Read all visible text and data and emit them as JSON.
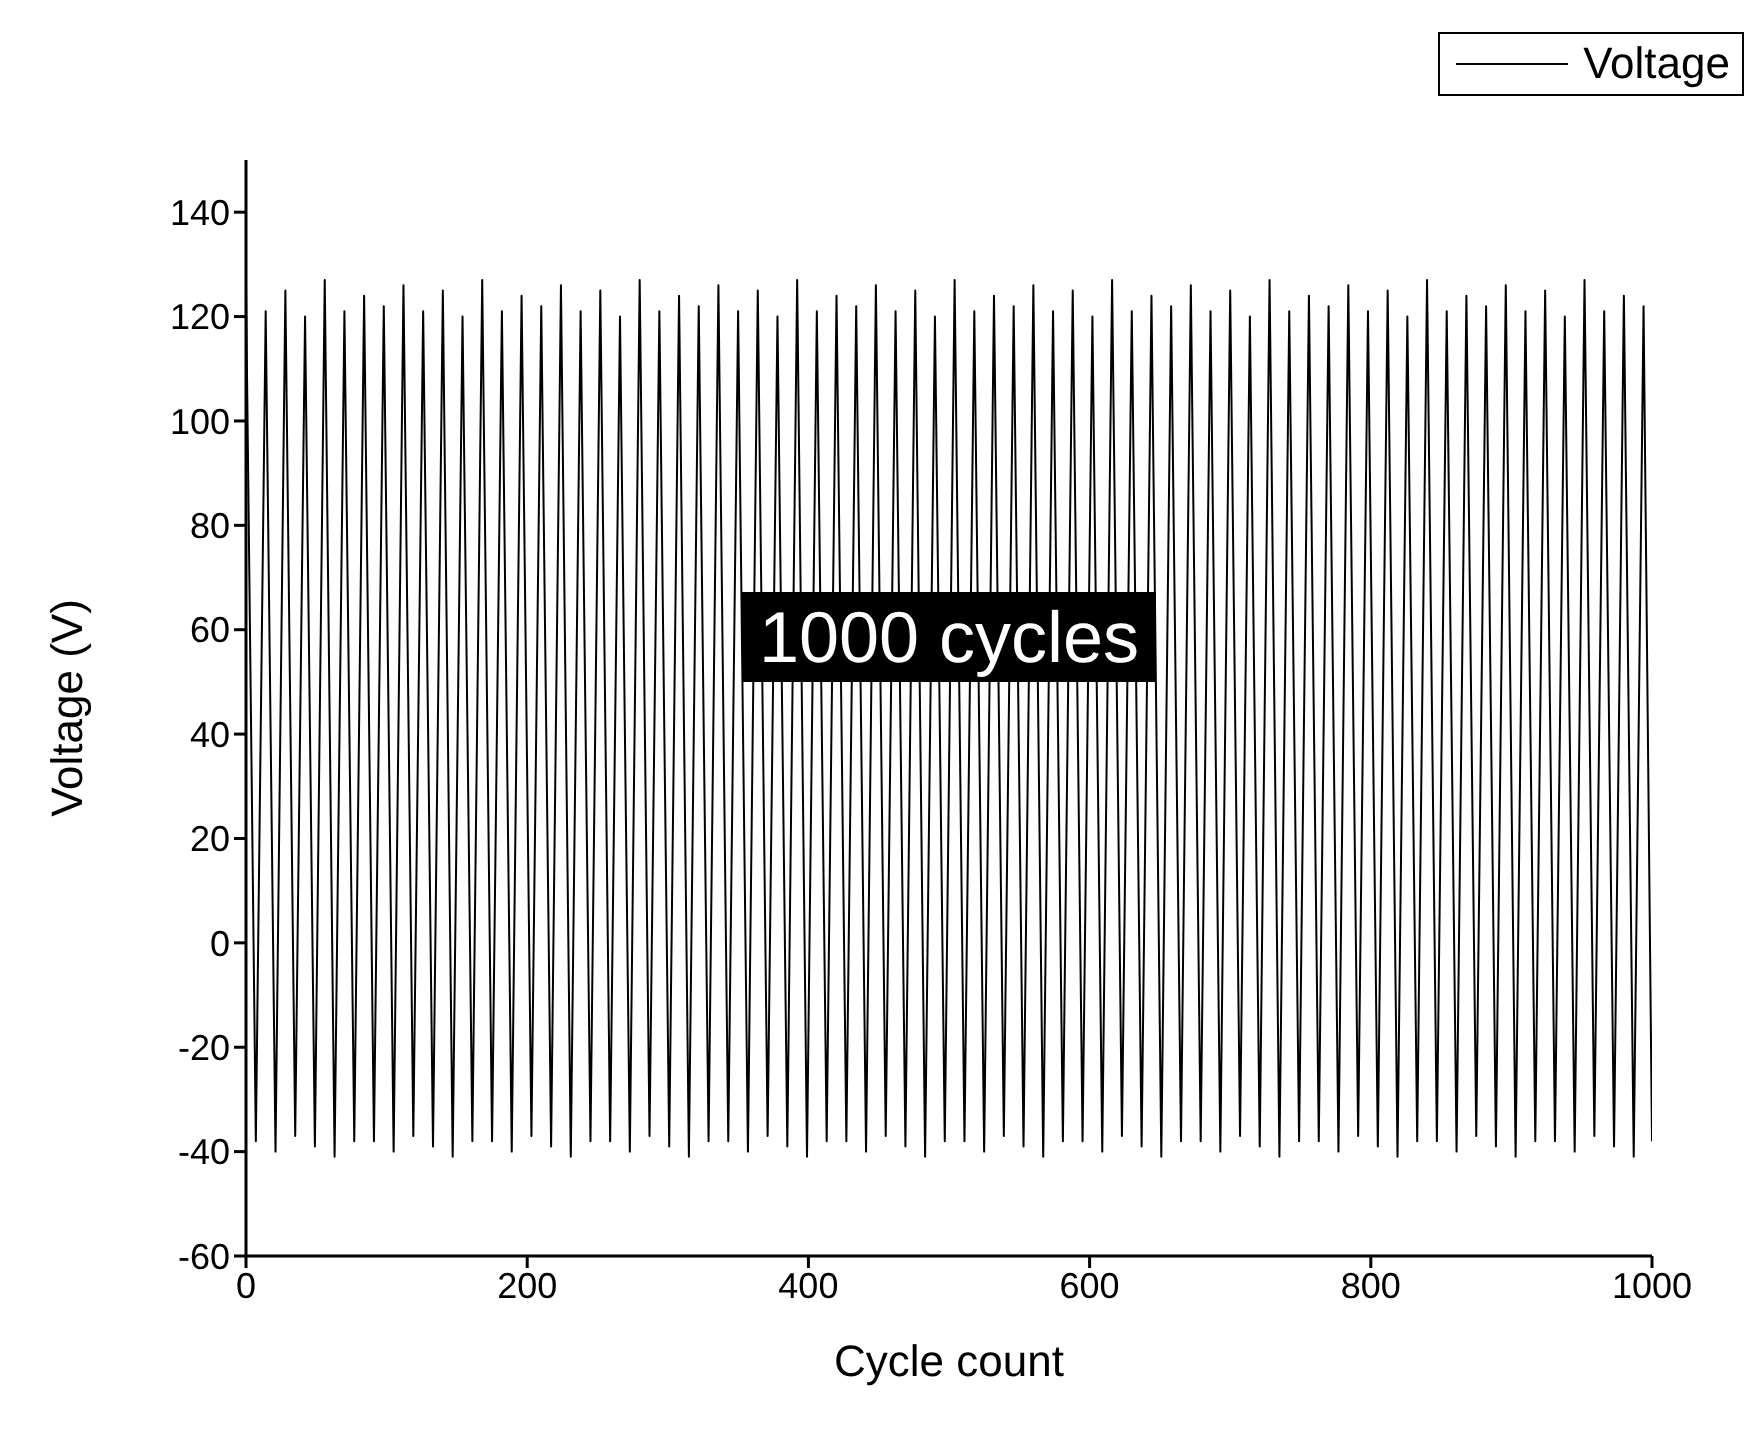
{
  "chart_data": {
    "type": "line",
    "xlabel": "Cycle count",
    "ylabel": "Voltage (V)",
    "legend": "top right",
    "grid": false,
    "marker": "none",
    "line_style": "solid",
    "xlim": [
      0,
      1000
    ],
    "xticks": [
      0,
      200,
      400,
      600,
      800,
      1000
    ],
    "ylim": [
      -60,
      150
    ],
    "yticks": [
      -60,
      -40,
      -20,
      0,
      20,
      40,
      60,
      80,
      100,
      120,
      140
    ],
    "annotations": [
      "1000 cycles"
    ],
    "x": [
      0,
      7,
      14,
      21,
      28,
      35,
      42,
      49,
      56,
      63,
      70,
      77,
      84,
      91,
      98,
      105,
      112,
      119,
      126,
      133,
      140,
      147,
      154,
      161,
      168,
      175,
      182,
      189,
      196,
      203,
      210,
      217,
      224,
      231,
      238,
      245,
      252,
      259,
      266,
      273,
      280,
      287,
      294,
      301,
      308,
      315,
      322,
      329,
      336,
      343,
      350,
      357,
      364,
      371,
      378,
      385,
      392,
      399,
      406,
      413,
      420,
      427,
      434,
      441,
      448,
      455,
      462,
      469,
      476,
      483,
      490,
      497,
      504,
      511,
      518,
      525,
      532,
      539,
      546,
      553,
      560,
      567,
      574,
      581,
      588,
      595,
      602,
      609,
      616,
      623,
      630,
      637,
      644,
      651,
      658,
      665,
      672,
      679,
      686,
      693,
      700,
      707,
      714,
      721,
      728,
      735,
      742,
      749,
      756,
      763,
      770,
      777,
      784,
      791,
      798,
      805,
      812,
      819,
      826,
      833,
      840,
      847,
      854,
      861,
      868,
      875,
      882,
      889,
      896,
      903,
      910,
      917,
      924,
      931,
      938,
      945,
      952,
      959,
      966,
      973,
      980,
      987,
      994,
      1000
    ],
    "series": [
      {
        "name": "Voltage",
        "color": "#000000",
        "values": [
          126,
          -38,
          121,
          -40,
          125,
          -37,
          120,
          -39,
          127,
          -41,
          121,
          -38,
          124,
          -38,
          122,
          -40,
          126,
          -37,
          121,
          -39,
          125,
          -41,
          120,
          -38,
          127,
          -38,
          121,
          -40,
          124,
          -37,
          122,
          -39,
          126,
          -41,
          121,
          -38,
          125,
          -38,
          120,
          -40,
          127,
          -37,
          121,
          -39,
          124,
          -41,
          122,
          -38,
          126,
          -38,
          121,
          -40,
          125,
          -37,
          120,
          -39,
          127,
          -41,
          121,
          -38,
          124,
          -38,
          122,
          -40,
          126,
          -37,
          121,
          -39,
          125,
          -41,
          120,
          -38,
          127,
          -38,
          121,
          -40,
          124,
          -37,
          122,
          -39,
          126,
          -41,
          121,
          -38,
          125,
          -38,
          120,
          -40,
          127,
          -37,
          121,
          -39,
          124,
          -41,
          122,
          -38,
          126,
          -38,
          121,
          -40,
          125,
          -37,
          120,
          -39,
          127,
          -41,
          121,
          -38,
          124,
          -38,
          122,
          -40,
          126,
          -37,
          121,
          -39,
          125,
          -41,
          120,
          -38,
          127,
          -38,
          121,
          -40,
          124,
          -37,
          122,
          -39,
          126,
          -41,
          121,
          -38,
          125,
          -38,
          120,
          -40,
          127,
          -37,
          121,
          -39,
          124,
          -41,
          122,
          -38
        ]
      }
    ]
  }
}
